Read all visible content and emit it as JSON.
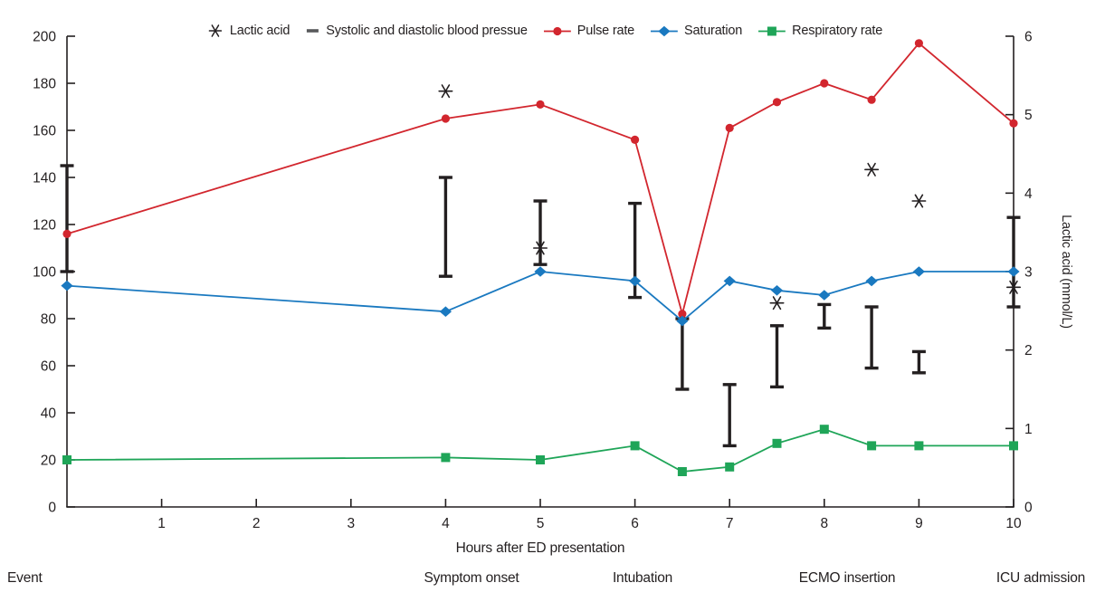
{
  "colors": {
    "pulse_rate": "#d2262e",
    "saturation": "#1a79c0",
    "respiratory_rate": "#1fa558",
    "black_marks": "#231f20",
    "bp_legend_dash": "#58595b",
    "text": "#231f20"
  },
  "legend": {
    "items": [
      {
        "label": "Lactic acid",
        "marker": "asterisk"
      },
      {
        "label": "Systolic and diastolic blood pressue",
        "marker": "dash"
      },
      {
        "label": "Pulse rate",
        "marker": "circle"
      },
      {
        "label": "Saturation",
        "marker": "diamond"
      },
      {
        "label": "Respiratory rate",
        "marker": "square"
      }
    ]
  },
  "events": {
    "row_label": "Event",
    "items": [
      {
        "label": "Symptom onset",
        "hour": 4
      },
      {
        "label": "Intubation",
        "hour": 6
      },
      {
        "label": "ECMO insertion",
        "hour": 8
      },
      {
        "label": "ICU admission",
        "hour": 10
      }
    ]
  },
  "chart_data": {
    "type": "line",
    "xlabel": "Hours after ED presentation",
    "right_ylabel": "Lactic acid (mmol/L)",
    "axes": {
      "left": {
        "range": [
          0,
          200
        ],
        "ticks": [
          0,
          20,
          40,
          60,
          80,
          100,
          120,
          140,
          160,
          180,
          200
        ]
      },
      "right": {
        "range": [
          0,
          6
        ],
        "ticks": [
          0,
          1,
          2,
          3,
          4,
          5,
          6
        ]
      },
      "x": {
        "range": [
          0,
          10
        ],
        "ticks": [
          1,
          2,
          3,
          4,
          5,
          6,
          7,
          8,
          9,
          10
        ]
      }
    },
    "x_hours": [
      0,
      4,
      5,
      6,
      6.5,
      7,
      7.5,
      8,
      8.5,
      9,
      10
    ],
    "series": [
      {
        "name": "Pulse rate",
        "key": "pulse_rate",
        "marker": "circle",
        "values": [
          116,
          165,
          171,
          156,
          82,
          161,
          172,
          180,
          173,
          197,
          163
        ]
      },
      {
        "name": "Saturation",
        "key": "saturation",
        "marker": "diamond",
        "values": [
          94,
          83,
          100,
          96,
          79,
          96,
          92,
          90,
          96,
          100,
          100
        ]
      },
      {
        "name": "Respiratory rate",
        "key": "respiratory_rate",
        "marker": "square",
        "values": [
          20,
          21,
          20,
          26,
          15,
          17,
          27,
          33,
          26,
          26,
          26
        ]
      }
    ],
    "blood_pressure": {
      "name": "Systolic and diastolic blood pressue",
      "points": [
        {
          "hour": 0,
          "systolic": 145,
          "diastolic": 100
        },
        {
          "hour": 4,
          "systolic": 140,
          "diastolic": 98
        },
        {
          "hour": 5,
          "systolic": 130,
          "diastolic": 103
        },
        {
          "hour": 6,
          "systolic": 129,
          "diastolic": 89
        },
        {
          "hour": 6.5,
          "systolic": 80,
          "diastolic": 50
        },
        {
          "hour": 7,
          "systolic": 52,
          "diastolic": 26
        },
        {
          "hour": 7.5,
          "systolic": 77,
          "diastolic": 51
        },
        {
          "hour": 8,
          "systolic": 86,
          "diastolic": 76
        },
        {
          "hour": 8.5,
          "systolic": 85,
          "diastolic": 59
        },
        {
          "hour": 9,
          "systolic": 66,
          "diastolic": 57
        },
        {
          "hour": 10,
          "systolic": 123,
          "diastolic": 85
        }
      ]
    },
    "lactic_acid": {
      "name": "Lactic acid",
      "axis": "right",
      "points": [
        {
          "hour": 4,
          "value": 5.3
        },
        {
          "hour": 5,
          "value": 3.3
        },
        {
          "hour": 7.5,
          "value": 2.6
        },
        {
          "hour": 8.5,
          "value": 4.3
        },
        {
          "hour": 9,
          "value": 3.9
        },
        {
          "hour": 10,
          "value": 2.8
        }
      ]
    }
  }
}
